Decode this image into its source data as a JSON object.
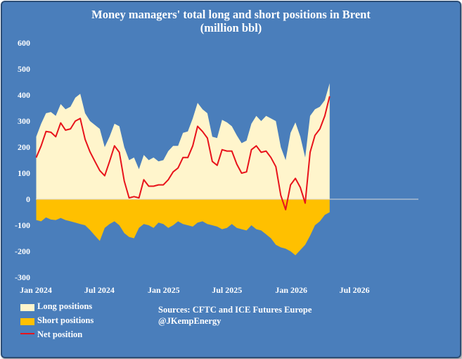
{
  "colors": {
    "background": "#4a7ebb",
    "long": "#fff5cc",
    "short": "#ffc000",
    "net": "#e8131b",
    "text": "#ffffff",
    "zero_line": "#d9d9d9"
  },
  "sources": "Sources: CFTC and ICE Futures Europe",
  "handle": "@JKempEnergy",
  "chart_data": {
    "type": "area",
    "title": "Money managers' total long and short positions in Brent",
    "subtitle": "(million bbl)",
    "xlabel": "",
    "ylabel": "",
    "ylim": [
      -300,
      600
    ],
    "yticks": [
      600,
      500,
      400,
      300,
      200,
      100,
      0,
      -100,
      -200,
      -300
    ],
    "ytick_labels": [
      "600",
      "500",
      "400",
      "300",
      "200",
      "100",
      "0",
      "-100",
      "-200",
      "-300"
    ],
    "xlim": [
      "2024-01-01",
      "2026-12-31"
    ],
    "xticks": [
      "2024-01-01",
      "2024-07-01",
      "2025-01-01",
      "2025-07-01",
      "2026-01-01",
      "2026-07-01"
    ],
    "xtick_labels": [
      "Jan 2024",
      "Jul 2024",
      "Jan 2025",
      "Jul 2025",
      "Jan 2026",
      "Jul 2026"
    ],
    "grid": false,
    "legend_position": "bottom-left",
    "x": [
      "2024-01-02",
      "2024-01-16",
      "2024-01-30",
      "2024-02-13",
      "2024-02-27",
      "2024-03-12",
      "2024-03-26",
      "2024-04-09",
      "2024-04-23",
      "2024-05-07",
      "2024-05-21",
      "2024-06-04",
      "2024-06-18",
      "2024-07-02",
      "2024-07-16",
      "2024-07-30",
      "2024-08-13",
      "2024-08-27",
      "2024-09-10",
      "2024-09-24",
      "2024-10-08",
      "2024-10-22",
      "2024-11-05",
      "2024-11-19",
      "2024-12-03",
      "2024-12-17",
      "2024-12-31",
      "2025-01-14",
      "2025-01-28",
      "2025-02-11",
      "2025-02-25",
      "2025-03-11",
      "2025-03-25",
      "2025-04-08",
      "2025-04-22",
      "2025-05-06",
      "2025-05-20",
      "2025-06-03",
      "2025-06-17",
      "2025-07-01",
      "2025-07-15",
      "2025-07-29",
      "2025-08-12",
      "2025-08-26",
      "2025-09-09",
      "2025-09-23",
      "2025-10-07",
      "2025-10-21",
      "2025-11-04",
      "2025-11-18",
      "2025-12-02",
      "2025-12-16",
      "2025-12-30",
      "2026-01-13",
      "2026-01-27",
      "2026-02-10",
      "2026-02-24",
      "2026-03-10",
      "2026-03-24",
      "2026-04-07",
      "2026-04-21"
    ],
    "series": [
      {
        "name": "Long positions",
        "values": [
          240,
          290,
          330,
          335,
          320,
          365,
          345,
          355,
          390,
          405,
          330,
          300,
          285,
          270,
          200,
          240,
          290,
          280,
          200,
          150,
          160,
          115,
          170,
          150,
          160,
          145,
          150,
          185,
          205,
          205,
          255,
          260,
          310,
          370,
          345,
          330,
          240,
          235,
          305,
          295,
          280,
          245,
          215,
          225,
          290,
          320,
          300,
          320,
          310,
          300,
          200,
          150,
          255,
          295,
          240,
          160,
          320,
          345,
          355,
          380,
          445
        ]
      },
      {
        "name": "Short positions",
        "values": [
          -80,
          -85,
          -70,
          -78,
          -80,
          -72,
          -80,
          -85,
          -90,
          -95,
          -100,
          -118,
          -140,
          -160,
          -110,
          -95,
          -85,
          -100,
          -130,
          -145,
          -150,
          -110,
          -95,
          -100,
          -110,
          -90,
          -95,
          -110,
          -100,
          -85,
          -95,
          -100,
          -105,
          -90,
          -85,
          -95,
          -100,
          -105,
          -115,
          -110,
          -95,
          -110,
          -115,
          -120,
          -100,
          -115,
          -120,
          -135,
          -150,
          -175,
          -185,
          -190,
          -200,
          -215,
          -195,
          -175,
          -140,
          -100,
          -85,
          -60,
          -50
        ]
      },
      {
        "name": "Net position",
        "values": [
          160,
          205,
          260,
          257,
          240,
          293,
          265,
          270,
          300,
          310,
          230,
          182,
          145,
          110,
          90,
          145,
          205,
          180,
          70,
          5,
          10,
          5,
          75,
          50,
          50,
          55,
          55,
          75,
          105,
          120,
          160,
          160,
          205,
          280,
          260,
          235,
          145,
          130,
          190,
          185,
          185,
          135,
          100,
          105,
          190,
          205,
          180,
          185,
          160,
          125,
          15,
          -40,
          55,
          80,
          45,
          -15,
          180,
          245,
          270,
          320,
          395
        ]
      }
    ]
  }
}
